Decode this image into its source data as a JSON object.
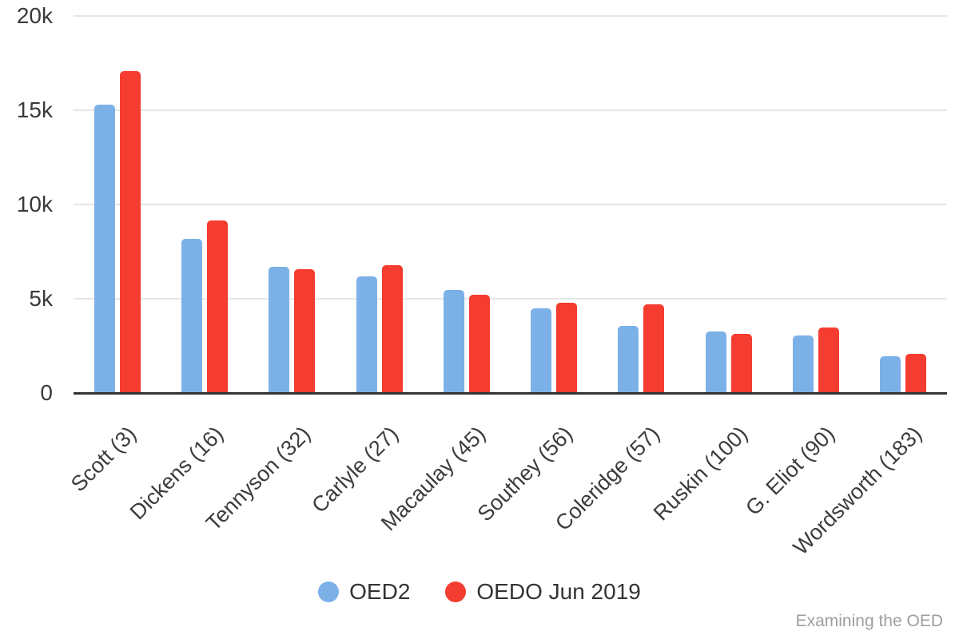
{
  "chart_data": {
    "type": "bar",
    "title": "",
    "xlabel": "",
    "ylabel": "",
    "categories": [
      "Scott (3)",
      "Dickens (16)",
      "Tennyson (32)",
      "Carlyle (27)",
      "Macaulay (45)",
      "Southey (56)",
      "Coleridge (57)",
      "Ruskin (100)",
      "G. Eliot (90)",
      "Wordsworth (183)"
    ],
    "series": [
      {
        "name": "OED2",
        "color": "#7cb1e8",
        "values": [
          15280,
          8170,
          6700,
          6200,
          5450,
          4500,
          3560,
          3250,
          3060,
          1960
        ]
      },
      {
        "name": "OEDO Jun 2019",
        "color": "#f43c30",
        "values": [
          17060,
          9160,
          6550,
          6800,
          5210,
          4770,
          4690,
          3140,
          3470,
          2080
        ]
      }
    ],
    "ylim": [
      0,
      20000
    ],
    "yticks": [
      {
        "label": "0",
        "value": 0
      },
      {
        "label": "5k",
        "value": 5000
      },
      {
        "label": "10k",
        "value": 10000
      },
      {
        "label": "15k",
        "value": 15000
      },
      {
        "label": "20k",
        "value": 20000
      }
    ],
    "grid": true,
    "legend_position": "bottom"
  },
  "footer": {
    "credit": "Examining the OED"
  },
  "colors": {
    "gridline": "#e6e6e6",
    "axis_line": "#333333",
    "tick_text": "#3a3a3a",
    "category_text": "#3c3c3c",
    "legend_text": "#333333",
    "footer_text": "#9e9e9e"
  }
}
